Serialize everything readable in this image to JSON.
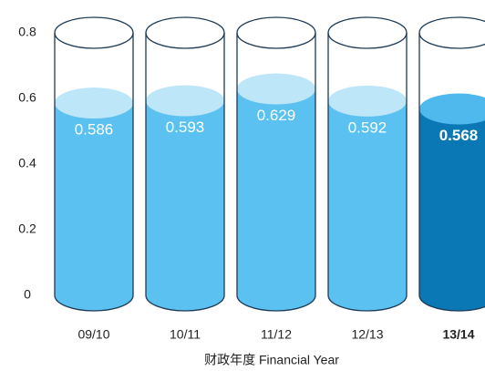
{
  "chart_data": {
    "type": "cylinder",
    "x_label": "财政年度 Financial Year",
    "categories": [
      "09/10",
      "10/11",
      "11/12",
      "12/13",
      "13/14"
    ],
    "values": [
      0.586,
      0.593,
      0.629,
      0.592,
      0.568
    ],
    "color": "#5bc1f0",
    "colors": [
      "#5bc1f0",
      "#5bc1f0",
      "#5bc1f0",
      "#5bc1f0",
      "#0a78b5"
    ],
    "ylim": [
      0,
      0.8
    ],
    "yticks": [
      0,
      0.2,
      0.4,
      0.6,
      0.8
    ],
    "grid": false
  }
}
